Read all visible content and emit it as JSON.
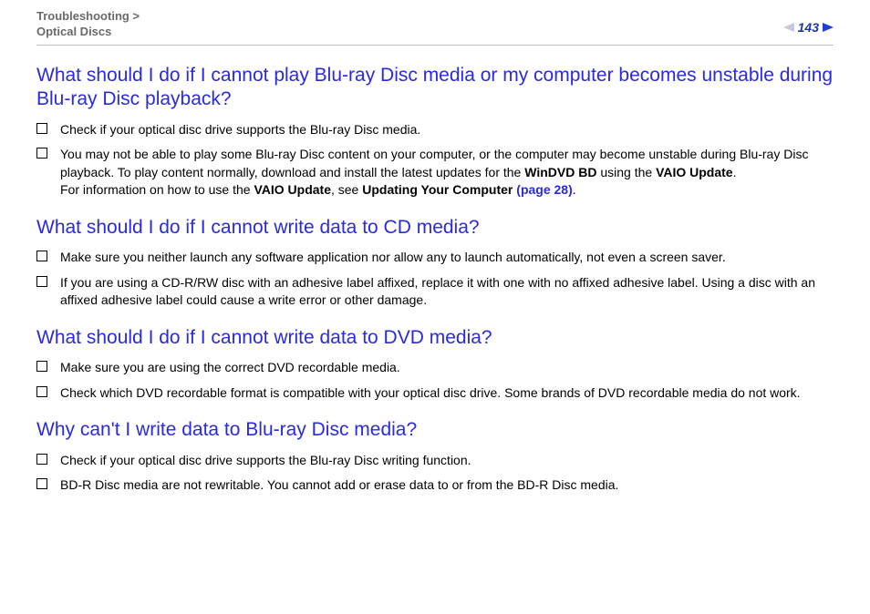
{
  "header": {
    "breadcrumb_line1": "Troubleshooting >",
    "breadcrumb_line2": "Optical Discs",
    "page_number": "143"
  },
  "sections": {
    "s1": {
      "heading": "What should I do if I cannot play Blu-ray Disc media or my computer becomes unstable during Blu-ray Disc playback?",
      "b1": "Check if your optical disc drive supports the Blu-ray Disc media.",
      "b2_part1": "You may not be able to play some Blu-ray Disc content on your computer, or the computer may become unstable during Blu-ray Disc playback. To play content normally, download and install the latest updates for the ",
      "b2_bold1": "WinDVD BD",
      "b2_part2": " using the ",
      "b2_bold2": "VAIO Update",
      "b2_part3": ".",
      "b2_part4": "For information on how to use the ",
      "b2_bold3": "VAIO Update",
      "b2_part5": ", see ",
      "b2_bold4": "Updating Your Computer ",
      "b2_link": "(page 28)",
      "b2_part6": "."
    },
    "s2": {
      "heading": "What should I do if I cannot write data to CD media?",
      "b1": "Make sure you neither launch any software application nor allow any to launch automatically, not even a screen saver.",
      "b2": "If you are using a CD-R/RW disc with an adhesive label affixed, replace it with one with no affixed adhesive label. Using a disc with an affixed adhesive label could cause a write error or other damage."
    },
    "s3": {
      "heading": "What should I do if I cannot write data to DVD media?",
      "b1": "Make sure you are using the correct DVD recordable media.",
      "b2": "Check which DVD recordable format is compatible with your optical disc drive. Some brands of DVD recordable media do not work."
    },
    "s4": {
      "heading": "Why can't I write data to Blu-ray Disc media?",
      "b1": "Check if your optical disc drive supports the Blu-ray Disc writing function.",
      "b2": "BD-R Disc media are not rewritable. You cannot add or erase data to or from the BD-R Disc media."
    }
  }
}
